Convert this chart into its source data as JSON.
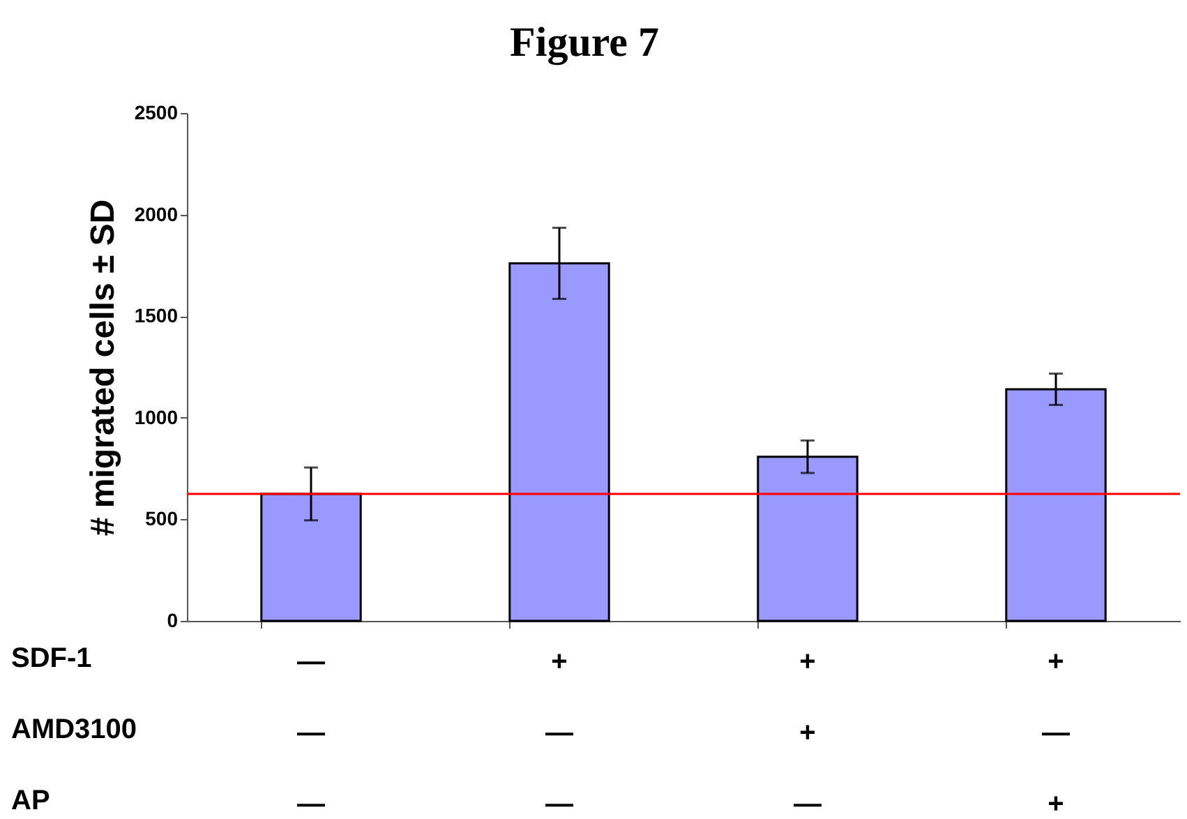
{
  "chart_data": {
    "type": "bar",
    "title": "Figure 7",
    "ylabel": "#  migrated cells ± SD",
    "categories": [
      "—\n—\n—",
      "+\n—\n—",
      "+\n+\n—",
      "+\n—\n+"
    ],
    "values": [
      625,
      1760,
      808,
      1140
    ],
    "errors": [
      130,
      175,
      80,
      77
    ],
    "color": "#9999ff",
    "ylim": [
      0,
      2500
    ],
    "yticks": [
      0,
      500,
      1000,
      1500,
      2000,
      2500
    ],
    "ref_lines": [
      {
        "axis": "y",
        "value": 625,
        "color": "#ff0000"
      }
    ],
    "annotations": [
      "SDF-1",
      "AMD3100",
      "AP"
    ],
    "tick_labels": true
  }
}
